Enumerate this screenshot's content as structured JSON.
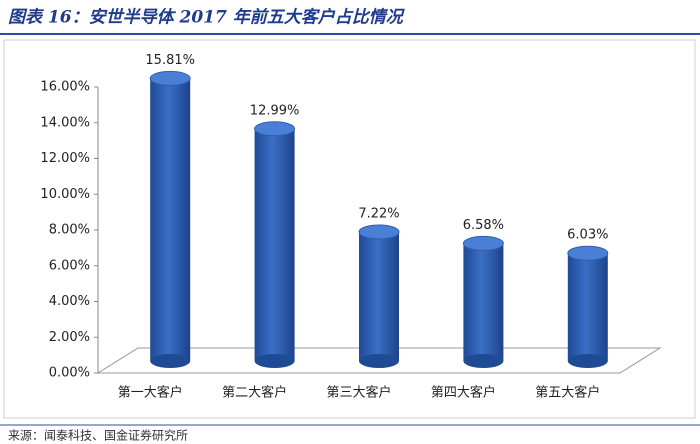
{
  "header": {
    "title": "图表 16：安世半导体 2017 年前五大客户占比情况"
  },
  "chart_data": {
    "type": "bar",
    "categories": [
      "第一大客户",
      "第二大客户",
      "第三大客户",
      "第四大客户",
      "第五大客户"
    ],
    "values": [
      15.81,
      12.99,
      7.22,
      6.58,
      6.03
    ],
    "value_labels": [
      "15.81%",
      "12.99%",
      "7.22%",
      "6.58%",
      "6.03%"
    ],
    "color": "#2f5fb3",
    "ylim": [
      0,
      16
    ],
    "yticks": [
      {
        "value": 0,
        "label": "0.00%"
      },
      {
        "value": 2,
        "label": "2.00%"
      },
      {
        "value": 4,
        "label": "4.00%"
      },
      {
        "value": 6,
        "label": "6.00%"
      },
      {
        "value": 8,
        "label": "8.00%"
      },
      {
        "value": 10,
        "label": "10.00%"
      },
      {
        "value": 12,
        "label": "12.00%"
      },
      {
        "value": 14,
        "label": "14.00%"
      },
      {
        "value": 16,
        "label": "16.00%"
      }
    ]
  },
  "footer": {
    "source": "来源：闻泰科技、国金证券研究所"
  }
}
